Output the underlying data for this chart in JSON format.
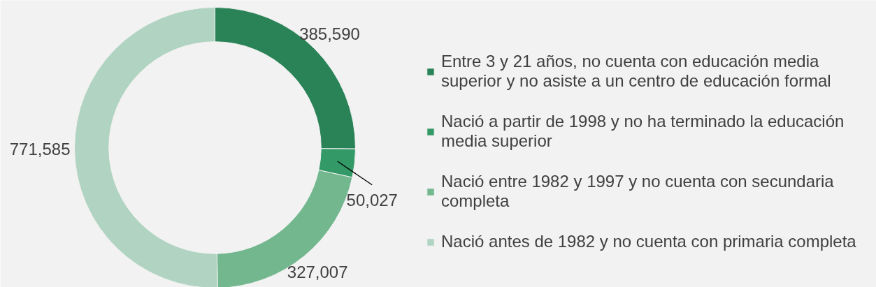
{
  "chart_data": {
    "type": "donut",
    "categories": [
      "Entre 3 y 21 años, no cuenta con educación media superior y no asiste a un centro de educación formal",
      "Nació a partir de 1998 y no ha terminado la educación media superior",
      "Nació entre 1982 y 1997 y no cuenta con secundaria completa",
      "Nació antes de 1982 y no cuenta con primaria completa"
    ],
    "values": [
      385590,
      50027,
      327007,
      771585
    ],
    "value_labels": [
      "385,590",
      "50,027",
      "327,007",
      "771,585"
    ],
    "colors": [
      "#2a8257",
      "#339966",
      "#72b78e",
      "#b1d3c1"
    ],
    "legend": "right"
  }
}
